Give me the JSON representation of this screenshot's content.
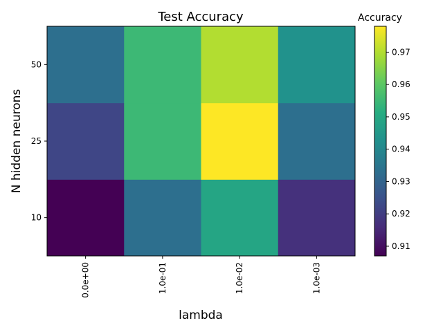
{
  "chart_data": {
    "type": "heatmap",
    "title": "Test Accuracy",
    "xlabel": "lambda",
    "ylabel": "N hidden neurons",
    "x_categories": [
      "0.0e+00",
      "1.0e-01",
      "1.0e-02",
      "1.0e-03"
    ],
    "y_categories": [
      "10",
      "25",
      "50"
    ],
    "values": [
      [
        0.907,
        0.933,
        0.949,
        0.917
      ],
      [
        0.922,
        0.955,
        0.978,
        0.933
      ],
      [
        0.933,
        0.955,
        0.97,
        0.943
      ]
    ],
    "colorbar": {
      "label": "Accuracy",
      "range": [
        0.907,
        0.978
      ],
      "ticks": [
        "0.91",
        "0.92",
        "0.93",
        "0.94",
        "0.95",
        "0.96",
        "0.97"
      ],
      "colormap": "viridis"
    },
    "grid": false
  }
}
